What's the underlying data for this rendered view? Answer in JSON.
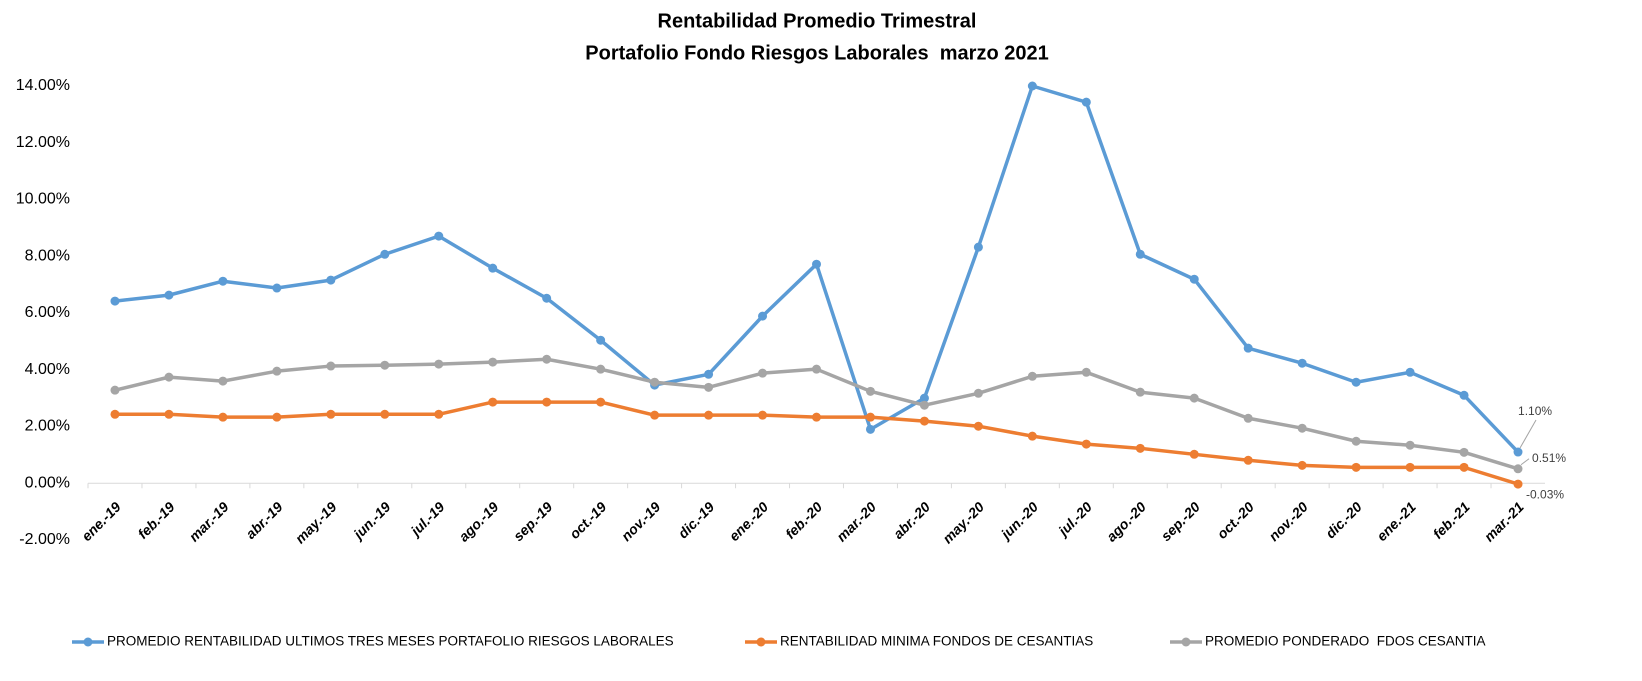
{
  "chart_data": {
    "type": "line",
    "title": "Rentabilidad Promedio Trimestral",
    "subtitle": "Portafolio Fondo Riesgos Laborales  marzo 2021",
    "categories": [
      "ene.-19",
      "feb.-19",
      "mar.-19",
      "abr.-19",
      "may.-19",
      "jun.-19",
      "jul.-19",
      "ago.-19",
      "sep.-19",
      "oct.-19",
      "nov.-19",
      "dic.-19",
      "ene.-20",
      "feb.-20",
      "mar.-20",
      "abr.-20",
      "may.-20",
      "jun.-20",
      "jul.-20",
      "ago.-20",
      "sep.-20",
      "oct.-20",
      "nov.-20",
      "dic.-20",
      "ene.-21",
      "feb.-21",
      "mar.-21"
    ],
    "series": [
      {
        "name": "PROMEDIO RENTABILIDAD ULTIMOS TRES MESES PORTAFOLIO RIESGOS LABORALES",
        "color": "#5b9bd5",
        "values": [
          6.42,
          6.63,
          7.12,
          6.88,
          7.16,
          8.07,
          8.71,
          7.58,
          6.52,
          5.04,
          3.46,
          3.84,
          5.89,
          7.72,
          1.9,
          3.0,
          8.32,
          14.0,
          13.43,
          8.07,
          7.19,
          4.76,
          4.23,
          3.56,
          3.91,
          3.1,
          1.1
        ],
        "value_labels": [
          null,
          null,
          null,
          null,
          null,
          null,
          null,
          null,
          null,
          null,
          null,
          null,
          null,
          null,
          null,
          null,
          null,
          null,
          null,
          null,
          null,
          null,
          null,
          null,
          null,
          null,
          "1.10%"
        ]
      },
      {
        "name": "RENTABILIDAD MINIMA FONDOS DE CESANTIAS",
        "color": "#ed7d31",
        "values": [
          2.43,
          2.43,
          2.33,
          2.33,
          2.43,
          2.43,
          2.43,
          2.86,
          2.86,
          2.86,
          2.4,
          2.4,
          2.4,
          2.33,
          2.33,
          2.19,
          2.01,
          1.66,
          1.38,
          1.23,
          1.02,
          0.81,
          0.63,
          0.56,
          0.56,
          0.56,
          -0.03
        ],
        "value_labels": [
          null,
          null,
          null,
          null,
          null,
          null,
          null,
          null,
          null,
          null,
          null,
          null,
          null,
          null,
          null,
          null,
          null,
          null,
          null,
          null,
          null,
          null,
          null,
          null,
          null,
          null,
          "-0.03%"
        ]
      },
      {
        "name": "PROMEDIO PONDERADO  FDOS CESANTIA",
        "color": "#a5a5a5",
        "values": [
          3.28,
          3.74,
          3.6,
          3.95,
          4.13,
          4.16,
          4.2,
          4.27,
          4.37,
          4.02,
          3.56,
          3.38,
          3.88,
          4.02,
          3.24,
          2.75,
          3.17,
          3.77,
          3.91,
          3.21,
          3.0,
          2.29,
          1.94,
          1.48,
          1.34,
          1.09,
          0.51
        ],
        "value_labels": [
          null,
          null,
          null,
          null,
          null,
          null,
          null,
          null,
          null,
          null,
          null,
          null,
          null,
          null,
          null,
          null,
          null,
          null,
          null,
          null,
          null,
          null,
          null,
          null,
          null,
          null,
          "0.51%"
        ]
      }
    ],
    "ylim": [
      -2,
      14
    ],
    "yticks": [
      {
        "value": -2,
        "label": "-2.00%"
      },
      {
        "value": 0,
        "label": "0.00%"
      },
      {
        "value": 2,
        "label": "2.00%"
      },
      {
        "value": 4,
        "label": "4.00%"
      },
      {
        "value": 6,
        "label": "6.00%"
      },
      {
        "value": 8,
        "label": "8.00%"
      },
      {
        "value": 10,
        "label": "10.00%"
      },
      {
        "value": 12,
        "label": "12.00%"
      },
      {
        "value": 14,
        "label": "14.00%"
      }
    ],
    "grid": false
  }
}
